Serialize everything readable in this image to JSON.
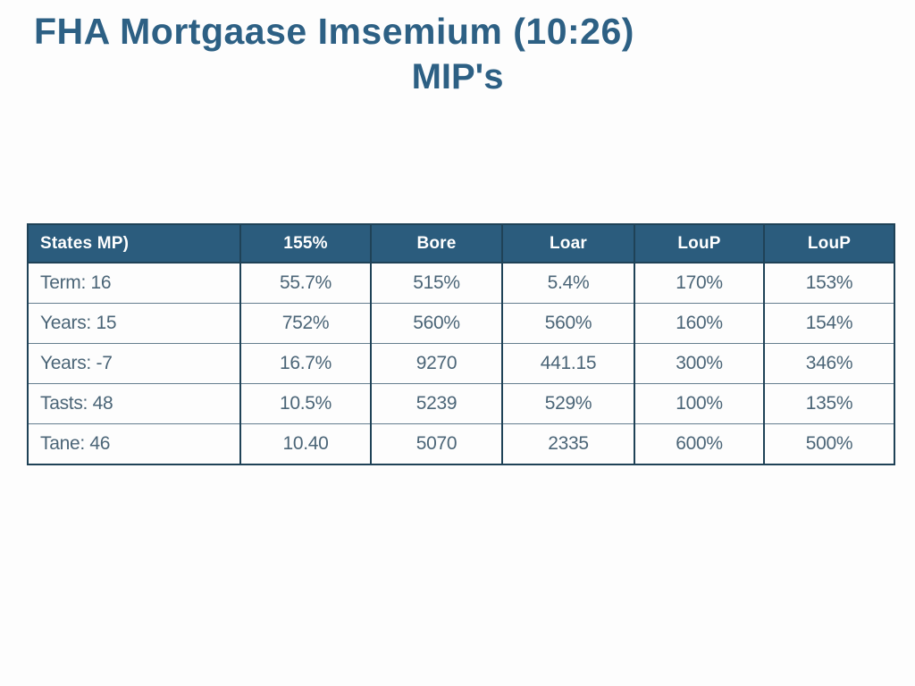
{
  "title": {
    "line1": "FHA Mortgaase Imsemium (10:26)",
    "line2": "MIP's"
  },
  "table": {
    "headers": [
      "States MP)",
      "155%",
      "Bore",
      "Loar",
      "LouP",
      "LouP"
    ],
    "rows": [
      [
        "Term: 16",
        "55.7%",
        "515%",
        "5.4%",
        "170%",
        "153%"
      ],
      [
        "Years: 15",
        "752%",
        "560%",
        "560%",
        "160%",
        "154%"
      ],
      [
        "Years: -7",
        "16.7%",
        "9270",
        "441.15",
        "300%",
        "346%"
      ],
      [
        "Tasts: 48",
        "10.5%",
        "5239",
        "529%",
        "100%",
        "135%"
      ],
      [
        "Tane: 46",
        "10.40",
        "5070",
        "2335",
        "600%",
        "500%"
      ]
    ]
  },
  "colors": {
    "title_text": "#2d6084",
    "header_bg": "#2b5c7d",
    "header_text": "#ffffff",
    "cell_text": "#4b6577",
    "border_dark": "#1f4257",
    "row_separator": "#647d8e"
  }
}
